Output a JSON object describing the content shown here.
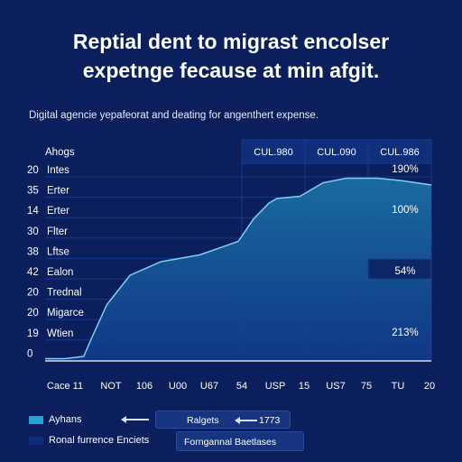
{
  "title": {
    "line1": "Reptial dent to migrast encolser",
    "line2": "expetnge fecause at min afgit."
  },
  "subtitle": "Digital agencie yepafeorat and deating for angenthert expense.",
  "colors": {
    "background": "#0a1f5c",
    "area_fill": "#1a6fa3",
    "line": "#7fd0ee",
    "header_cell": "#0f2f7a",
    "value_cell": "#0d2766",
    "legend_light": "#27a3d0",
    "legend_dark": "#0e2c7a"
  },
  "chart_data": {
    "type": "area",
    "title": "Reptial dent to migrast encolser expetnge fecause at min afgit.",
    "subtitle": "Digital agencie yepafeorat and deating for angenthert expense.",
    "row_header": "Ahogs",
    "column_headers": [
      "CUL.980",
      "CUL.090",
      "CUL.986"
    ],
    "rows": [
      {
        "num": "20",
        "label": "Intes"
      },
      {
        "num": "35",
        "label": "Erter"
      },
      {
        "num": "14",
        "label": "Erter"
      },
      {
        "num": "30",
        "label": "Flter"
      },
      {
        "num": "38",
        "label": "Lftse"
      },
      {
        "num": "42",
        "label": "Ealon"
      },
      {
        "num": "20",
        "label": "Trednal"
      },
      {
        "num": "20",
        "label": "Migarce"
      },
      {
        "num": "19",
        "label": "Wtien"
      },
      {
        "num": "0",
        "label": ""
      }
    ],
    "value_labels": [
      {
        "row": 0,
        "text": "190%"
      },
      {
        "row": 2,
        "text": "100%"
      },
      {
        "row": 5,
        "text": "54%"
      },
      {
        "row": 8,
        "text": "213%"
      }
    ],
    "x_tick_labels": [
      "Cace 11",
      "NOT",
      "106",
      "U00",
      "U67",
      "54",
      "USP",
      "15",
      "US7",
      "75",
      "TU",
      "20"
    ],
    "series": [
      {
        "x": [
          0,
          0.5,
          1.0,
          1.2,
          1.6,
          2.2,
          3.0,
          4.0,
          5.0,
          5.4,
          5.8,
          6.0,
          6.6,
          7.2,
          7.8,
          8.6,
          9.2,
          9.6,
          10.0
        ],
        "values": [
          0.1,
          0.1,
          0.2,
          1.0,
          2.5,
          3.8,
          4.4,
          4.7,
          5.3,
          6.3,
          7.0,
          7.2,
          7.3,
          7.9,
          8.1,
          8.1,
          8.0,
          7.9,
          7.8
        ]
      }
    ],
    "ylim": [
      0,
      9
    ],
    "grid": true
  },
  "legend": [
    {
      "label": "Ayhans",
      "color": "#27a3d0"
    },
    {
      "label": "Ronal furrence Enciets",
      "color": "#0e2c7a"
    }
  ],
  "annotations": [
    {
      "text": "Ralgets"
    },
    {
      "text": "1773"
    },
    {
      "text": "Forngannal Baetlases"
    }
  ]
}
